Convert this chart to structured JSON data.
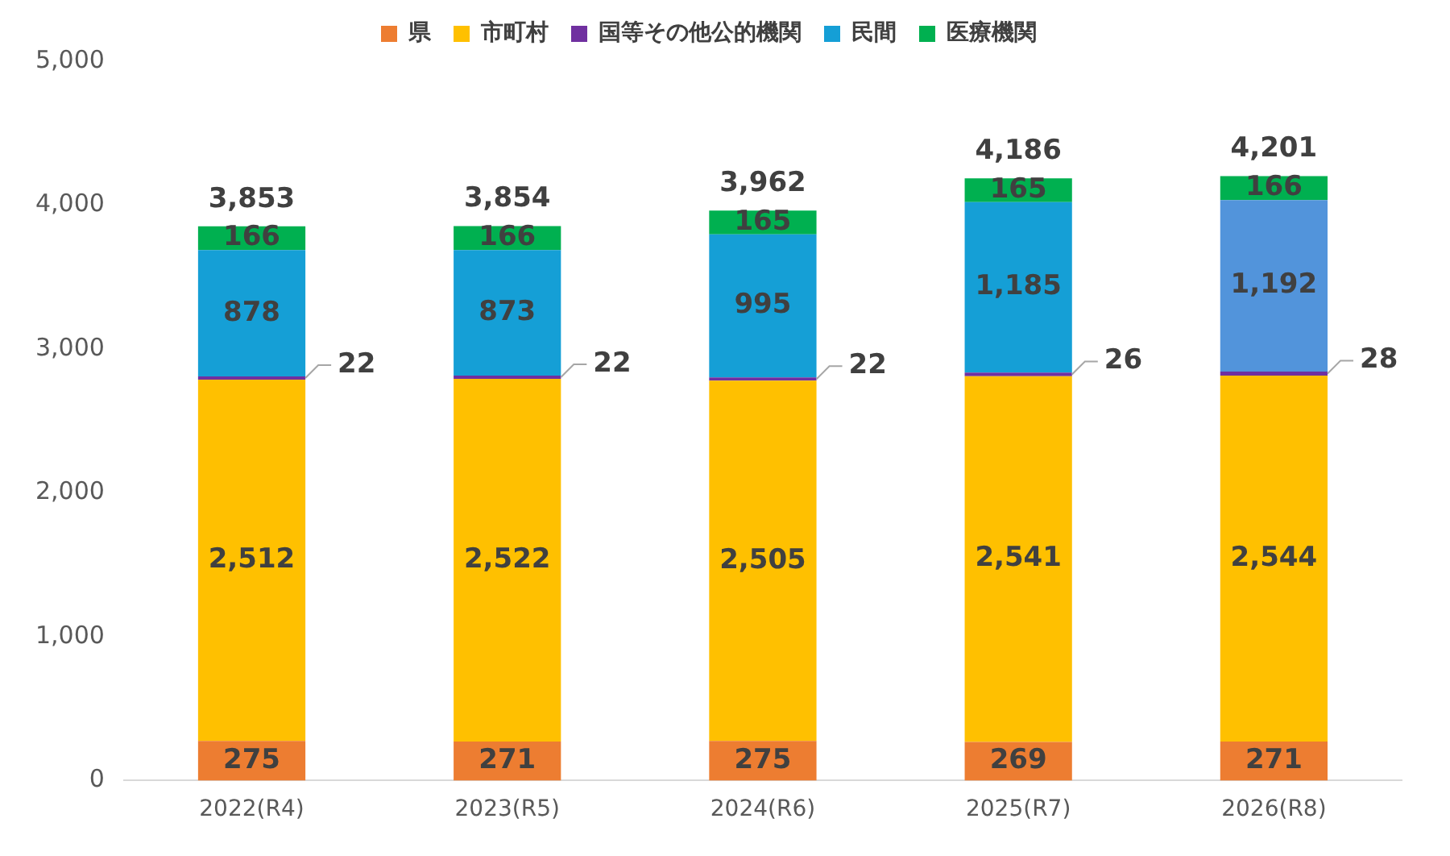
{
  "chart_data": {
    "type": "bar",
    "stacked": true,
    "legend": "top",
    "categories": [
      "2022(R4)",
      "2023(R5)",
      "2024(R6)",
      "2025(R7)",
      "2026(R8)"
    ],
    "ylim": [
      0,
      5000
    ],
    "yticks": [
      {
        "value": 0,
        "label": "0"
      },
      {
        "value": 1000,
        "label": "1,000"
      },
      {
        "value": 2000,
        "label": "2,000"
      },
      {
        "value": 3000,
        "label": "3,000"
      },
      {
        "value": 4000,
        "label": "4,000"
      },
      {
        "value": 5000,
        "label": "5,000"
      }
    ],
    "series": [
      {
        "name": "県",
        "color": "#ed7d31",
        "values": [
          275,
          271,
          275,
          269,
          271
        ],
        "value_labels": [
          "275",
          "271",
          "275",
          "269",
          "271"
        ]
      },
      {
        "name": "市町村",
        "color": "#ffc000",
        "values": [
          2512,
          2522,
          2505,
          2541,
          2544
        ],
        "value_labels": [
          "2,512",
          "2,522",
          "2,505",
          "2,541",
          "2,544"
        ]
      },
      {
        "name": "国等その他公的機関",
        "color": "#7030a0",
        "values": [
          22,
          22,
          22,
          26,
          28
        ],
        "value_labels": [
          "22",
          "22",
          "22",
          "26",
          "28"
        ]
      },
      {
        "name": "民間",
        "color": "#159fd6",
        "colors": [
          "#159fd6",
          "#159fd6",
          "#159fd6",
          "#159fd6",
          "#5294db"
        ],
        "values": [
          878,
          873,
          995,
          1185,
          1192
        ],
        "value_labels": [
          "878",
          "873",
          "995",
          "1,185",
          "1,192"
        ]
      },
      {
        "name": "医療機関",
        "color": "#00b050",
        "values": [
          166,
          166,
          165,
          165,
          166
        ],
        "value_labels": [
          "166",
          "166",
          "165",
          "165",
          "166"
        ]
      }
    ],
    "totals": [
      "3,853",
      "3,854",
      "3,962",
      "4,186",
      "4,201"
    ]
  }
}
